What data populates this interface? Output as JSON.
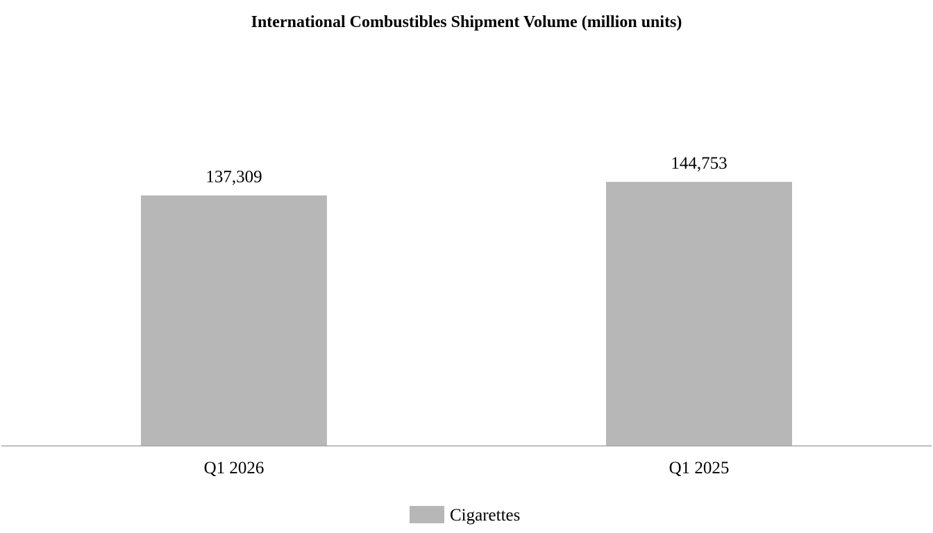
{
  "chart_data": {
    "type": "bar",
    "title": "International Combustibles Shipment Volume (million units)",
    "categories": [
      "Q1 2026",
      "Q1 2025"
    ],
    "series": [
      {
        "name": "Cigarettes",
        "values": [
          137309,
          144753
        ],
        "data_labels": [
          "137,309",
          "144,753"
        ],
        "color": "#b7b7b7"
      }
    ],
    "xlabel": "",
    "ylabel": "",
    "ylim": [
      0,
      152400
    ],
    "grid": false,
    "legend": "bottom-center",
    "axis_color": "#a6a6a6"
  }
}
